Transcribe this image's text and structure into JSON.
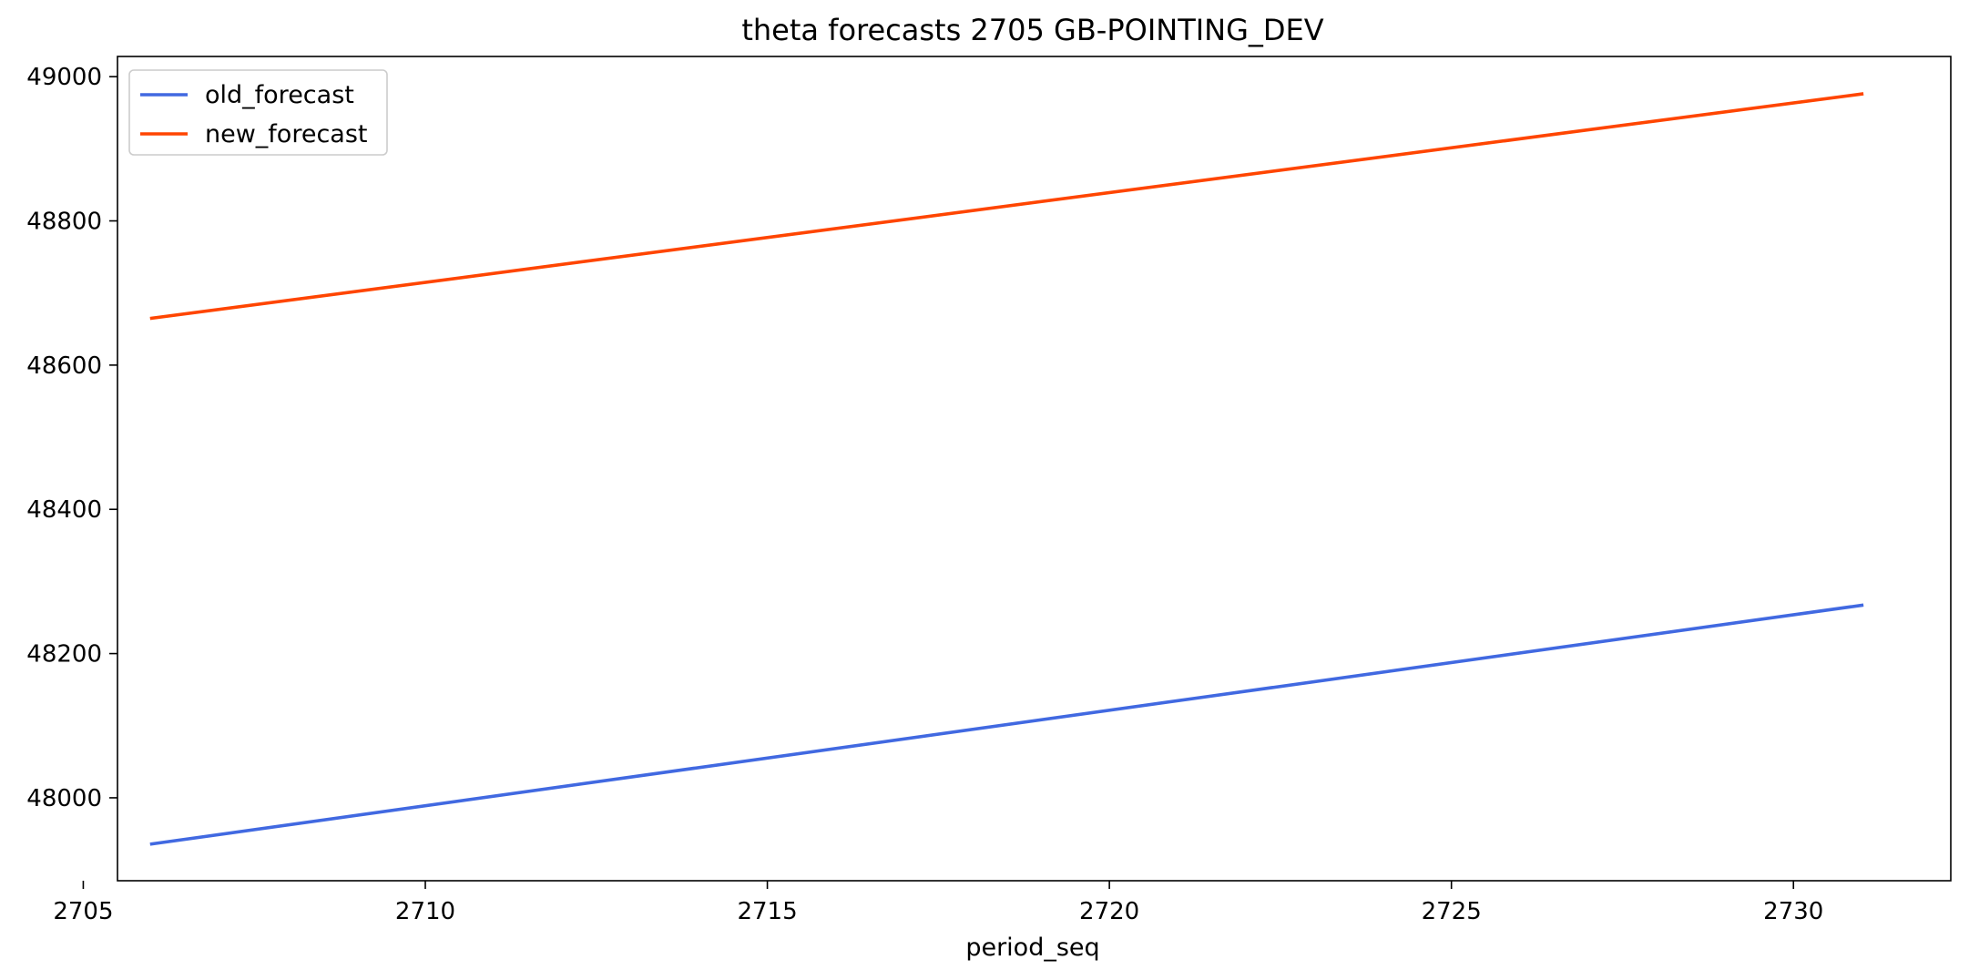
{
  "chart_data": {
    "type": "line",
    "title": "theta forecasts 2705 GB-POINTING_DEV",
    "xlabel": "period_seq",
    "ylabel": "",
    "xlim": [
      2705.5,
      2732.3
    ],
    "ylim": [
      47885,
      49028
    ],
    "x_ticks": [
      2705,
      2710,
      2715,
      2720,
      2725,
      2730
    ],
    "y_ticks": [
      48000,
      48200,
      48400,
      48600,
      48800,
      49000
    ],
    "x_tick_labels": [
      "2705",
      "2710",
      "2715",
      "2720",
      "2725",
      "2730"
    ],
    "y_tick_labels": [
      "48000",
      "48200",
      "48400",
      "48600",
      "48800",
      "49000"
    ],
    "grid": false,
    "legend_position": "upper-left",
    "series": [
      {
        "name": "old_forecast",
        "color": "#4169e1",
        "x": [
          2706,
          2731
        ],
        "y": [
          47936,
          48267
        ]
      },
      {
        "name": "new_forecast",
        "color": "#ff4500",
        "x": [
          2706,
          2731
        ],
        "y": [
          48665,
          48976
        ]
      }
    ]
  }
}
